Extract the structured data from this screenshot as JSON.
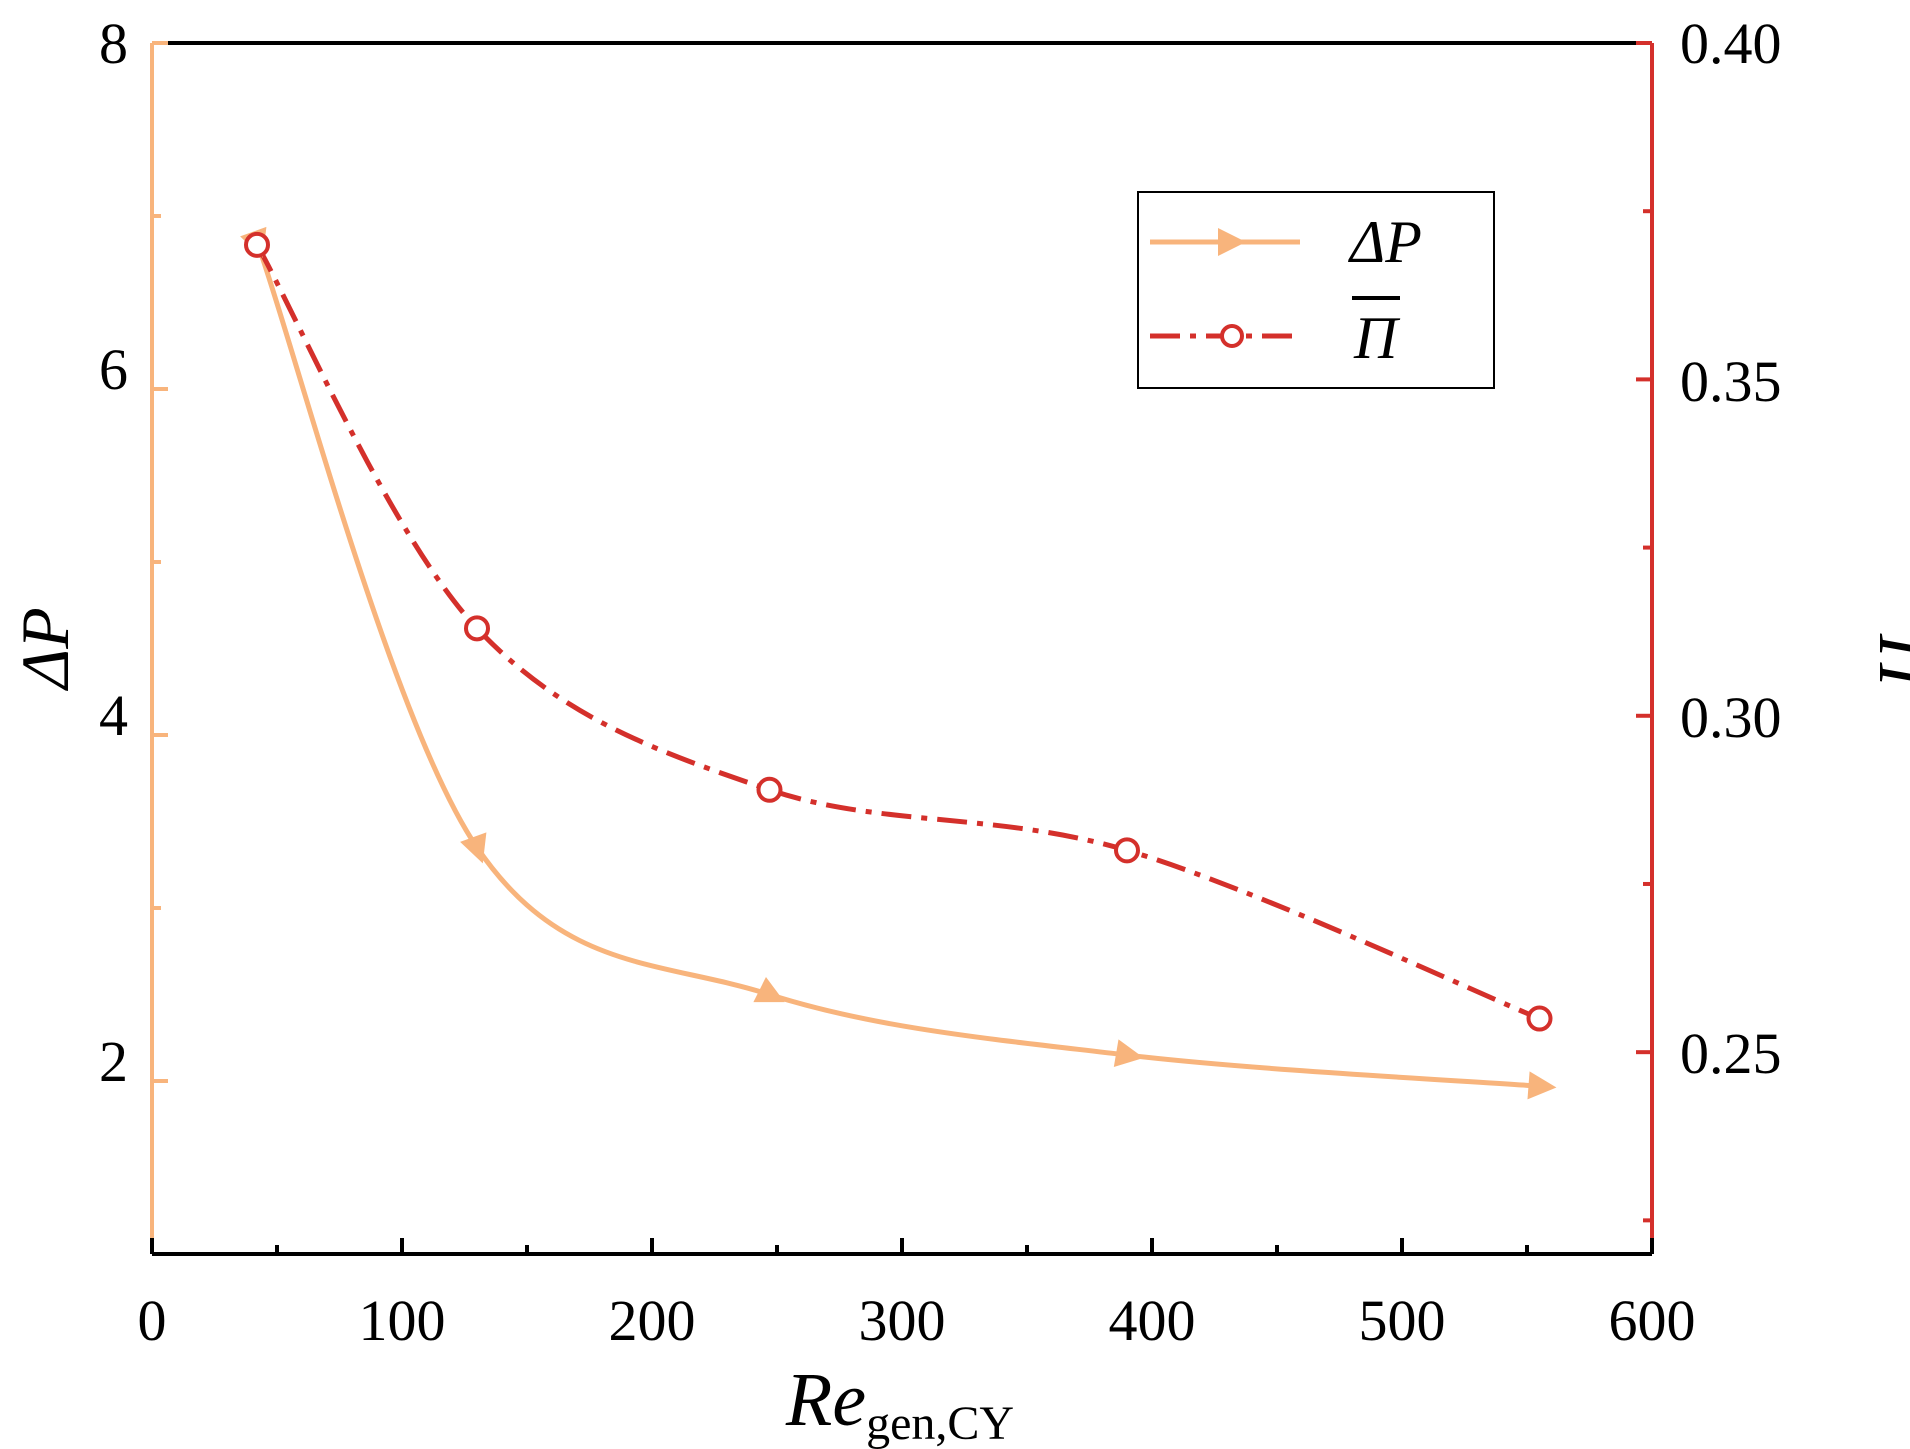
{
  "chart_data": {
    "type": "line",
    "x": [
      42,
      130,
      247,
      390,
      555
    ],
    "series": [
      {
        "name": "ΔP",
        "axis": "left",
        "values": [
          6.85,
          3.35,
          2.5,
          2.15,
          1.97
        ],
        "color": "#F8B47C",
        "line_style": "solid",
        "marker": "triangle"
      },
      {
        "name": "Π",
        "axis": "right",
        "values": [
          0.37,
          0.313,
          0.289,
          0.28,
          0.255
        ],
        "color": "#D4302B",
        "line_style": "dash-dot",
        "marker": "open-circle"
      }
    ],
    "xlabel": "Re",
    "xlabel_subscript": "gen,CY",
    "ylabel_left": "ΔP",
    "ylabel_right": "Π",
    "xlim": [
      0,
      600
    ],
    "ylim_left": [
      1,
      8
    ],
    "ylim_right": [
      0.22,
      0.4
    ],
    "x_ticks": [
      "0",
      "100",
      "200",
      "300",
      "400",
      "500",
      "600"
    ],
    "y_left_ticks": [
      "2",
      "4",
      "6",
      "8"
    ],
    "y_right_ticks": [
      "0.25",
      "0.30",
      "0.35",
      "0.40"
    ],
    "legend_position": "top-right",
    "grid": false
  }
}
